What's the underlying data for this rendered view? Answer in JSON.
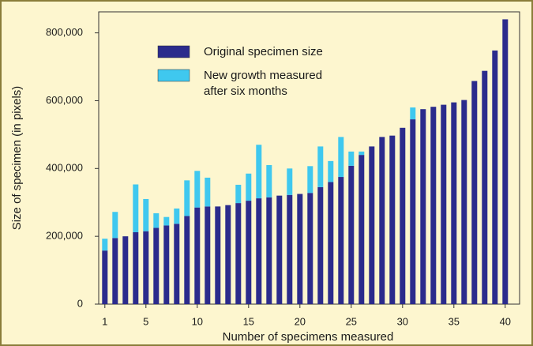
{
  "chart_data": {
    "type": "bar",
    "stacked": true,
    "xlabel": "Number of specimens measured",
    "ylabel": "Size of specimen (in pixels)",
    "x": [
      1,
      2,
      3,
      4,
      5,
      6,
      7,
      8,
      9,
      10,
      11,
      12,
      13,
      14,
      15,
      16,
      17,
      18,
      19,
      20,
      21,
      22,
      23,
      24,
      25,
      26,
      27,
      28,
      29,
      30,
      31,
      32,
      33,
      34,
      35,
      36,
      37,
      38,
      39,
      40
    ],
    "series": [
      {
        "name": "Original specimen size",
        "color": "#2b2b8c",
        "values": [
          158000,
          195000,
          200000,
          212000,
          215000,
          225000,
          232000,
          237000,
          260000,
          285000,
          288000,
          288000,
          292000,
          298000,
          305000,
          312000,
          315000,
          320000,
          322000,
          325000,
          328000,
          345000,
          360000,
          375000,
          408000,
          440000,
          465000,
          493000,
          497000,
          520000,
          545000,
          575000,
          582000,
          588000,
          595000,
          602000,
          658000,
          688000,
          748000,
          840000
        ]
      },
      {
        "name": "New growth measured after six months",
        "color": "#3fc8ef",
        "values": [
          35000,
          77000,
          0,
          141000,
          95000,
          43000,
          25000,
          45000,
          105000,
          108000,
          85000,
          0,
          0,
          54000,
          80000,
          158000,
          95000,
          0,
          78000,
          0,
          79000,
          120000,
          62000,
          118000,
          42000,
          10000,
          0,
          0,
          0,
          0,
          35000,
          0,
          0,
          0,
          0,
          0,
          0,
          0,
          0,
          0
        ]
      }
    ],
    "xlim": [
      0.4,
      41.4
    ],
    "xticks": [
      1,
      5,
      10,
      15,
      20,
      25,
      30,
      35,
      40
    ],
    "ylim": [
      0,
      862000
    ],
    "yticks": [
      0,
      {
        "value": 200000,
        "label": "200,000"
      },
      {
        "value": 400000,
        "label": "400,000"
      },
      {
        "value": 600000,
        "label": "600,000"
      },
      {
        "value": 800000,
        "label": "800,000"
      }
    ]
  }
}
